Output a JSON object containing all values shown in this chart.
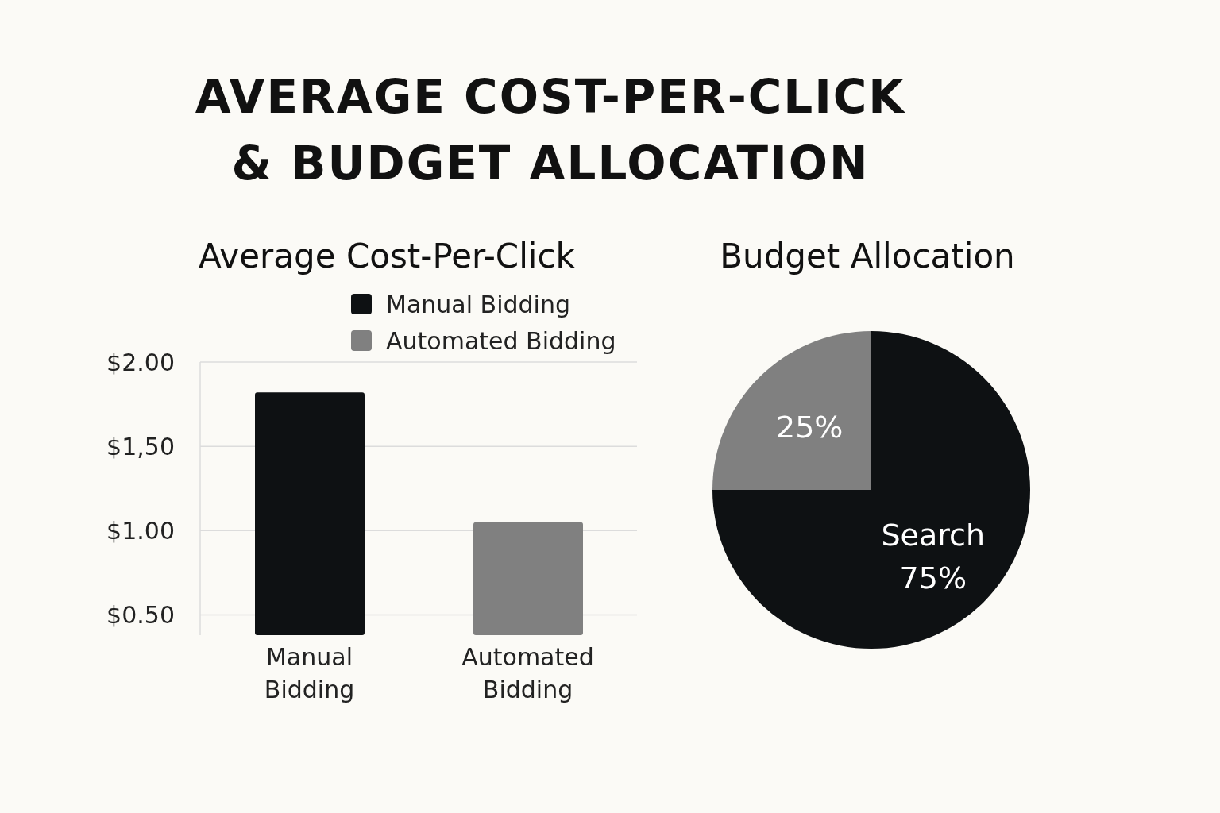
{
  "chart_data": [
    {
      "type": "other",
      "title": "AVERAGE COST-PER-CLICK\n& BUDGET ALLOCATION"
    },
    {
      "type": "bar",
      "title": "Average Cost-Per-Click",
      "categories": [
        "Manual Bidding",
        "Automated Bidding"
      ],
      "stacked": true,
      "series": [
        {
          "name": "Manual Bidding",
          "color": "#0e1113",
          "values": [
            1.82,
            null
          ]
        },
        {
          "name": "Automated Bidding",
          "color": "#808080",
          "values": [
            null,
            1.05
          ]
        }
      ],
      "ylim": [
        0.38,
        2.0
      ],
      "yticks": [
        {
          "value": 0.5,
          "label": "$0.50"
        },
        {
          "value": 1.0,
          "label": "$1.00"
        },
        {
          "value": 1.5,
          "label": "$1,50"
        },
        {
          "value": 2.0,
          "label": "$2.00"
        }
      ],
      "grid": "y",
      "legend": "top right"
    },
    {
      "type": "pie",
      "title": "Budget Allocation",
      "categories": [
        "Search",
        null
      ],
      "values": [
        75,
        25
      ],
      "colors": [
        "#0e1113",
        "#808080"
      ],
      "value_labels": [
        "75%",
        "25%"
      ]
    }
  ]
}
